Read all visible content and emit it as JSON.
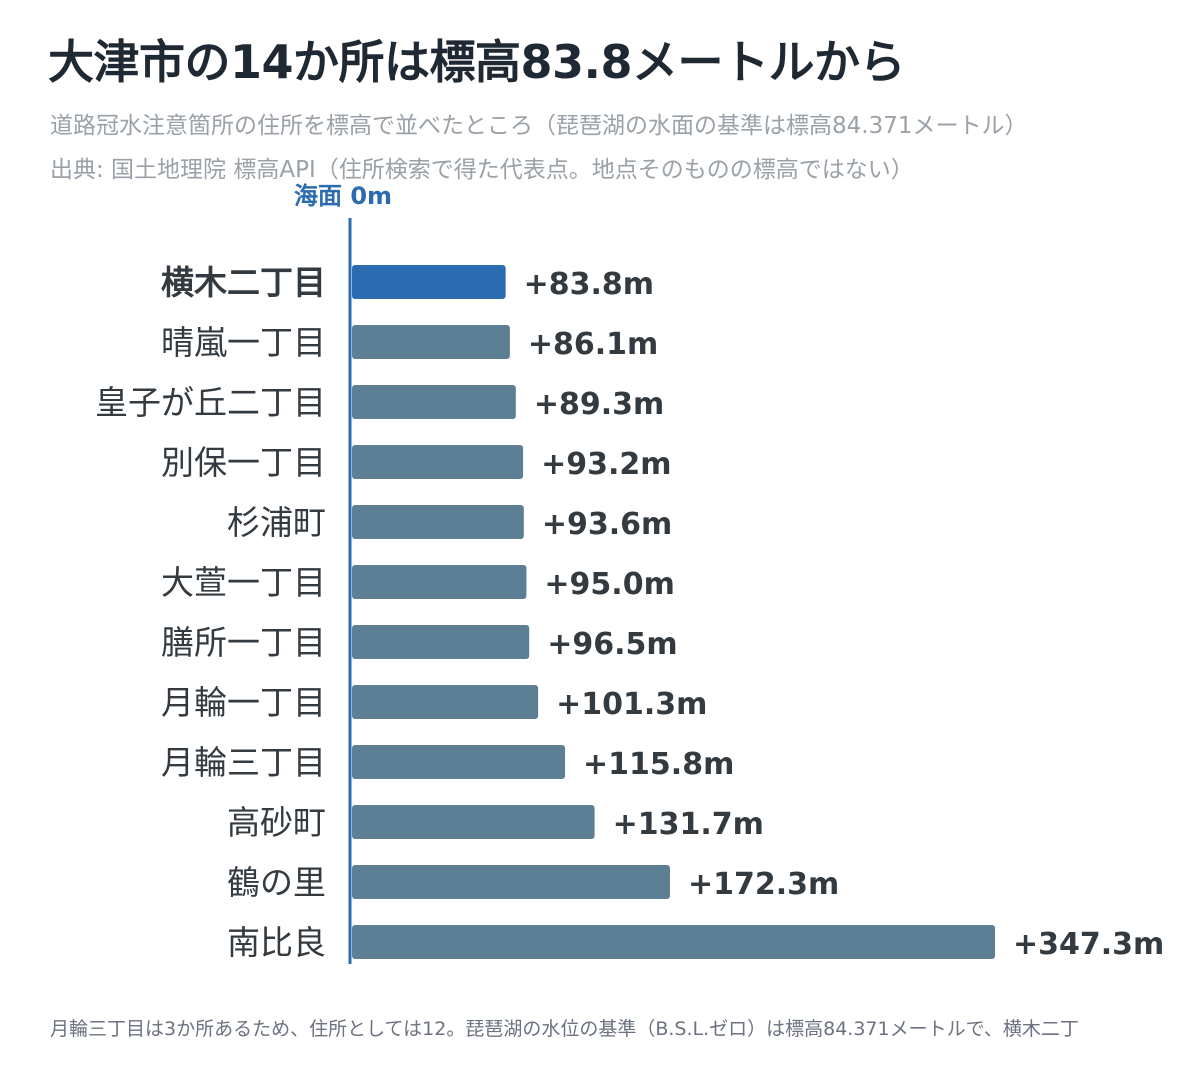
{
  "title": "大津市の14か所は標高83.8メートルから",
  "subtitle": "道路冠水注意箇所の住所を標高で並べたところ（琵琶湖の水面の基準は標高84.371メートル）",
  "source": "出典: 国土地理院 標高API（住所検索で得た代表点。地点そのものの標高ではない）",
  "axis_label": "海面 0m",
  "footnote": "月輪三丁目は3か所あるため、住所としては12。琵琶湖の水位の基準（B.S.L.ゼロ）は標高84.371メートルで、横木二丁",
  "colors": {
    "highlight": "#2b6cb0",
    "bar": "#5d7f96",
    "axis": "#2b6cb0",
    "label": "#333a40",
    "value": "#333a40"
  },
  "chart_data": {
    "type": "bar",
    "orientation": "horizontal",
    "categories": [
      "横木二丁目",
      "晴嵐一丁目",
      "皇子が丘二丁目",
      "別保一丁目",
      "杉浦町",
      "大萱一丁目",
      "膳所一丁目",
      "月輪一丁目",
      "月輪三丁目",
      "高砂町",
      "鶴の里",
      "南比良"
    ],
    "values": [
      83.8,
      86.1,
      89.3,
      93.2,
      93.6,
      95.0,
      96.5,
      101.3,
      115.8,
      131.7,
      172.3,
      347.3
    ],
    "value_labels": [
      "+83.8m",
      "+86.1m",
      "+89.3m",
      "+93.2m",
      "+93.6m",
      "+95.0m",
      "+96.5m",
      "+101.3m",
      "+115.8m",
      "+131.7m",
      "+172.3m",
      "+347.3m"
    ],
    "highlight_index": 0,
    "xlim": [
      0,
      347.3
    ],
    "grid": false,
    "legend": "none"
  }
}
